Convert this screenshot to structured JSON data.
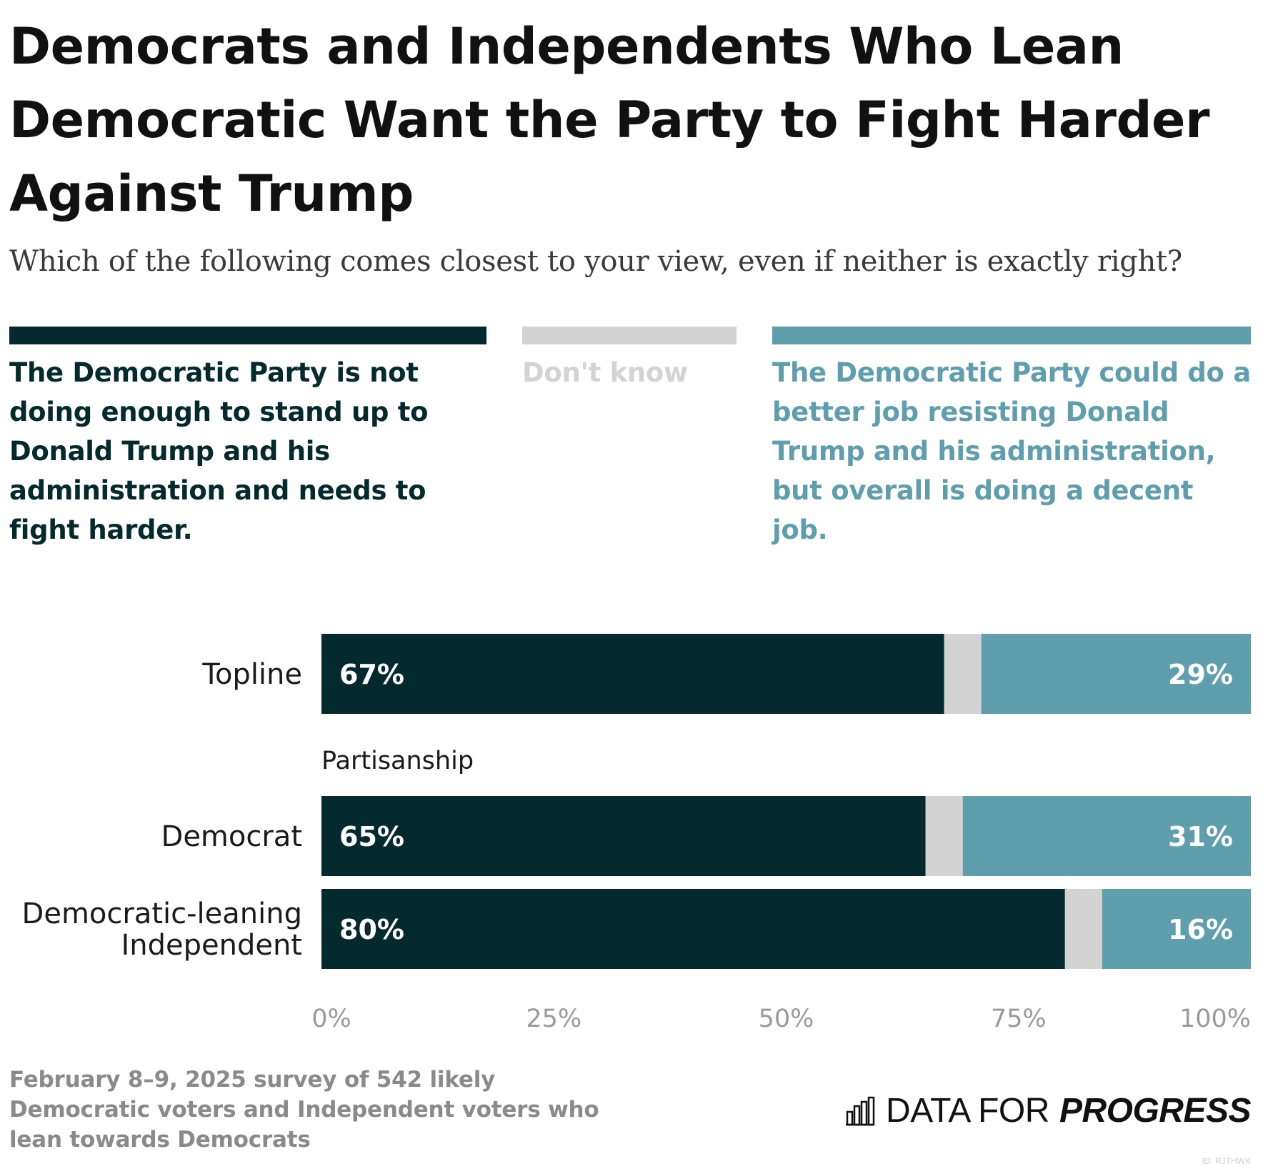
{
  "title": "Democrats and Independents Who Lean Democratic Want the Party to Fight Harder Against Trump",
  "subtitle": "Which of the following comes closest to your view, even if neither is exactly right?",
  "colors": {
    "fight_harder": "#052a2d",
    "dont_know": "#d3d3d3",
    "decent_job": "#5f9fad",
    "axis_text": "#9a9a9a"
  },
  "legend": [
    {
      "key": "fight_harder",
      "label": "The Democratic Party is not doing enough to stand up to Donald Trump and his administration and needs to fight harder.",
      "color": "#052a2d",
      "text_color": "#052a2d"
    },
    {
      "key": "dont_know",
      "label": "Don't know",
      "color": "#d3d3d3",
      "text_color": "#d3d3d3"
    },
    {
      "key": "decent_job",
      "label": "The Democratic Party could do a better job resisting Donald Trump and his administration, but overall is doing a decent job.",
      "color": "#5f9fad",
      "text_color": "#5f9fad"
    }
  ],
  "chart_data": {
    "type": "bar",
    "orientation": "horizontal",
    "stacked": true,
    "xlim": [
      0,
      100
    ],
    "x_ticks": [
      "0%",
      "25%",
      "50%",
      "75%",
      "100%"
    ],
    "group_label": "Partisanship",
    "categories": [
      "Topline",
      "Democrat",
      "Democratic-leaning Independent"
    ],
    "category_lines": [
      [
        "Topline"
      ],
      [
        "Democrat"
      ],
      [
        "Democratic-leaning",
        "Independent"
      ]
    ],
    "series": [
      {
        "name": "The Democratic Party is not doing enough to stand up to Donald Trump and his administration and needs to fight harder.",
        "values": [
          67,
          65,
          80
        ],
        "labels": [
          "67%",
          "65%",
          "80%"
        ]
      },
      {
        "name": "Don't know",
        "values": [
          4,
          4,
          4
        ]
      },
      {
        "name": "The Democratic Party could do a better job resisting Donald Trump and his administration, but overall is doing a decent job.",
        "values": [
          29,
          31,
          16
        ],
        "labels": [
          "29%",
          "31%",
          "16%"
        ]
      }
    ]
  },
  "source": "February 8–9, 2025 survey of 542 likely Democratic voters and Independent voters who lean towards Democrats",
  "brand": {
    "prefix": "DATA FOR",
    "bold": "PROGRESS",
    "icon": "bar-chart-logo-icon"
  },
  "watermark": "ID: RJTHWK"
}
